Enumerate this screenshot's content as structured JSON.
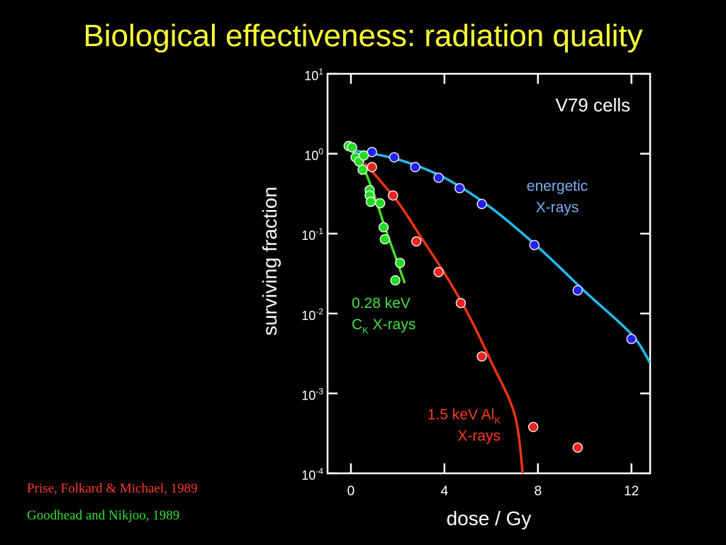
{
  "slide": {
    "title": "Biological effectiveness: radiation quality",
    "credits": [
      "Prise, Folkard & Michael, 1989",
      "Goodhead and Nikjoo, 1989"
    ]
  },
  "chart_data": {
    "type": "scatter",
    "panel_label": "V79 cells",
    "xlabel": "dose / Gy",
    "ylabel": "surviving fraction",
    "xlim": [
      -1,
      12.8
    ],
    "ylim": [
      0.0001,
      10
    ],
    "y_scale": "log",
    "x_ticks": [
      {
        "value": 0,
        "label": "0"
      },
      {
        "value": 4,
        "label": "4"
      },
      {
        "value": 8,
        "label": "8"
      },
      {
        "value": 12,
        "label": "12"
      }
    ],
    "y_ticks": [
      {
        "value": 10,
        "base": "10",
        "exp": "1"
      },
      {
        "value": 1,
        "base": "10",
        "exp": "0"
      },
      {
        "value": 0.1,
        "base": "10",
        "exp": "-1"
      },
      {
        "value": 0.01,
        "base": "10",
        "exp": "-2"
      },
      {
        "value": 0.001,
        "base": "10",
        "exp": "-3"
      },
      {
        "value": 0.0001,
        "base": "10",
        "exp": "-4"
      }
    ],
    "series": [
      {
        "label_lines": [
          {
            "text": "energetic"
          },
          {
            "text": "X-rays"
          }
        ],
        "color": "#2222ee",
        "fit_color": "#22bbee",
        "label_color": "#7aaef0",
        "points": [
          {
            "x": 0.9,
            "y": 1.05
          },
          {
            "x": 1.85,
            "y": 0.9
          },
          {
            "x": 2.75,
            "y": 0.68
          },
          {
            "x": 3.75,
            "y": 0.5
          },
          {
            "x": 4.65,
            "y": 0.37
          },
          {
            "x": 5.6,
            "y": 0.235
          },
          {
            "x": 7.85,
            "y": 0.072
          },
          {
            "x": 9.7,
            "y": 0.0195
          },
          {
            "x": 12.0,
            "y": 0.0048
          }
        ],
        "fit": [
          {
            "x": 0.0,
            "y": 1.12
          },
          {
            "x": 2.0,
            "y": 0.85
          },
          {
            "x": 4.0,
            "y": 0.5
          },
          {
            "x": 6.0,
            "y": 0.21
          },
          {
            "x": 8.0,
            "y": 0.068
          },
          {
            "x": 10.0,
            "y": 0.019
          },
          {
            "x": 12.0,
            "y": 0.0055
          },
          {
            "x": 12.8,
            "y": 0.0024
          }
        ]
      },
      {
        "label_lines": [
          {
            "text": "1.5 keV Al",
            "sub": "K"
          },
          {
            "text": "X-rays"
          }
        ],
        "color": "#ee2222",
        "fit_color": "#ee3311",
        "label_color": "#ff3a22",
        "points": [
          {
            "x": 0.9,
            "y": 0.68
          },
          {
            "x": 1.8,
            "y": 0.3
          },
          {
            "x": 2.8,
            "y": 0.08
          },
          {
            "x": 3.75,
            "y": 0.033
          },
          {
            "x": 4.7,
            "y": 0.0135
          },
          {
            "x": 5.6,
            "y": 0.0029
          },
          {
            "x": 7.8,
            "y": 0.00038
          },
          {
            "x": 9.7,
            "y": 0.00021
          }
        ],
        "fit": [
          {
            "x": 0.6,
            "y": 0.76
          },
          {
            "x": 2.0,
            "y": 0.25
          },
          {
            "x": 3.0,
            "y": 0.09
          },
          {
            "x": 4.0,
            "y": 0.032
          },
          {
            "x": 5.0,
            "y": 0.01
          },
          {
            "x": 6.0,
            "y": 0.0025
          },
          {
            "x": 7.0,
            "y": 0.00055
          },
          {
            "x": 7.35,
            "y": 0.0001
          }
        ]
      },
      {
        "label_lines": [
          {
            "text": "0.28 keV"
          },
          {
            "text": "C",
            "sub": "K",
            "tail": " X-rays"
          }
        ],
        "color": "#22dd22",
        "fit_color": "#44dd22",
        "label_color": "#44e044",
        "points": [
          {
            "x": -0.1,
            "y": 1.25
          },
          {
            "x": 0.05,
            "y": 1.2
          },
          {
            "x": 0.2,
            "y": 0.9
          },
          {
            "x": 0.35,
            "y": 0.8
          },
          {
            "x": 0.55,
            "y": 0.95
          },
          {
            "x": 0.5,
            "y": 0.63
          },
          {
            "x": 0.8,
            "y": 0.35
          },
          {
            "x": 0.8,
            "y": 0.3
          },
          {
            "x": 0.85,
            "y": 0.25
          },
          {
            "x": 1.25,
            "y": 0.24
          },
          {
            "x": 1.4,
            "y": 0.12
          },
          {
            "x": 1.45,
            "y": 0.085
          },
          {
            "x": 2.1,
            "y": 0.043
          },
          {
            "x": 1.9,
            "y": 0.026
          }
        ],
        "fit": [
          {
            "x": -0.2,
            "y": 1.35
          },
          {
            "x": 0.5,
            "y": 0.7
          },
          {
            "x": 1.0,
            "y": 0.3
          },
          {
            "x": 1.5,
            "y": 0.11
          },
          {
            "x": 2.0,
            "y": 0.043
          },
          {
            "x": 2.3,
            "y": 0.024
          }
        ]
      }
    ]
  }
}
